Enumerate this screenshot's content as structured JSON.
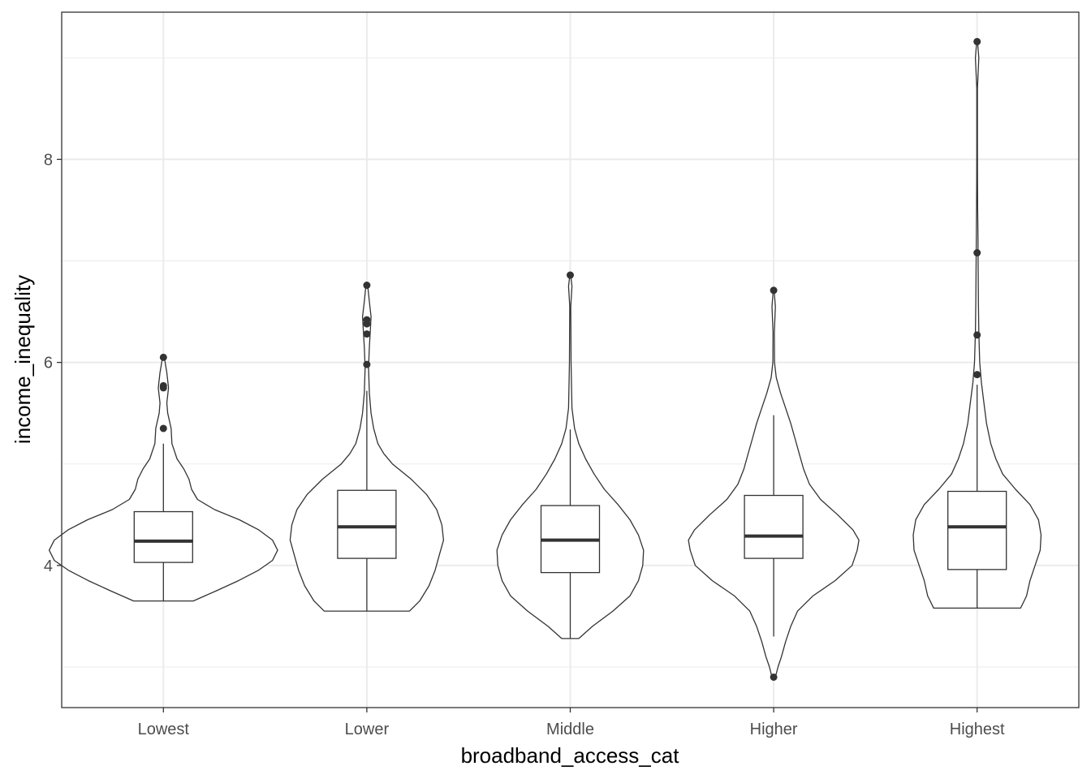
{
  "chart_data": {
    "type": "violin",
    "xlabel": "broadband_access_cat",
    "ylabel": "income_inequality",
    "categories": [
      "Lowest",
      "Lower",
      "Middle",
      "Higher",
      "Highest"
    ],
    "ylim": [
      2.6,
      9.45
    ],
    "yticks": [
      4,
      6,
      8
    ],
    "grid": true,
    "colors": {
      "line": "#333333",
      "grid": "#ebebeb",
      "panel_border": "#333333",
      "text": "#4d4d4d"
    },
    "series": [
      {
        "category": "Lowest",
        "box": {
          "lower_whisker": 3.65,
          "q1": 4.03,
          "median": 4.24,
          "q3": 4.53,
          "upper_whisker": 5.2
        },
        "outliers": [
          5.35,
          5.75,
          5.77,
          6.05
        ],
        "violin": [
          [
            3.65,
            0.35
          ],
          [
            3.75,
            0.62
          ],
          [
            3.85,
            0.88
          ],
          [
            3.95,
            1.11
          ],
          [
            4.05,
            1.28
          ],
          [
            4.15,
            1.34
          ],
          [
            4.25,
            1.28
          ],
          [
            4.35,
            1.12
          ],
          [
            4.45,
            0.89
          ],
          [
            4.55,
            0.6
          ],
          [
            4.65,
            0.4
          ],
          [
            4.75,
            0.33
          ],
          [
            4.85,
            0.3
          ],
          [
            4.95,
            0.24
          ],
          [
            5.05,
            0.16
          ],
          [
            5.2,
            0.1
          ],
          [
            5.35,
            0.09
          ],
          [
            5.5,
            0.05
          ],
          [
            5.6,
            0.04
          ],
          [
            5.75,
            0.06
          ],
          [
            5.9,
            0.04
          ],
          [
            6.05,
            0.01
          ]
        ]
      },
      {
        "category": "Lower",
        "box": {
          "lower_whisker": 3.55,
          "q1": 4.07,
          "median": 4.38,
          "q3": 4.74,
          "upper_whisker": 5.72
        },
        "outliers": [
          5.98,
          6.28,
          6.38,
          6.42,
          6.76
        ],
        "violin": [
          [
            3.55,
            0.5
          ],
          [
            3.65,
            0.62
          ],
          [
            3.8,
            0.73
          ],
          [
            3.95,
            0.8
          ],
          [
            4.1,
            0.85
          ],
          [
            4.25,
            0.9
          ],
          [
            4.4,
            0.88
          ],
          [
            4.55,
            0.82
          ],
          [
            4.7,
            0.7
          ],
          [
            4.85,
            0.52
          ],
          [
            5.0,
            0.3
          ],
          [
            5.1,
            0.2
          ],
          [
            5.2,
            0.13
          ],
          [
            5.35,
            0.08
          ],
          [
            5.5,
            0.05
          ],
          [
            5.7,
            0.03
          ],
          [
            5.95,
            0.02
          ],
          [
            6.15,
            0.03
          ],
          [
            6.3,
            0.04
          ],
          [
            6.45,
            0.05
          ],
          [
            6.6,
            0.03
          ],
          [
            6.76,
            0.01
          ]
        ]
      },
      {
        "category": "Middle",
        "box": {
          "lower_whisker": 3.28,
          "q1": 3.93,
          "median": 4.25,
          "q3": 4.59,
          "upper_whisker": 5.34
        },
        "outliers": [
          6.86
        ],
        "violin": [
          [
            3.28,
            0.1
          ],
          [
            3.4,
            0.26
          ],
          [
            3.55,
            0.5
          ],
          [
            3.7,
            0.7
          ],
          [
            3.85,
            0.8
          ],
          [
            4.0,
            0.85
          ],
          [
            4.15,
            0.86
          ],
          [
            4.3,
            0.8
          ],
          [
            4.45,
            0.7
          ],
          [
            4.6,
            0.56
          ],
          [
            4.75,
            0.4
          ],
          [
            4.9,
            0.28
          ],
          [
            5.05,
            0.18
          ],
          [
            5.2,
            0.1
          ],
          [
            5.35,
            0.05
          ],
          [
            5.55,
            0.02
          ],
          [
            5.75,
            0.015
          ],
          [
            6.0,
            0.01
          ],
          [
            6.3,
            0.008
          ],
          [
            6.55,
            0.006
          ],
          [
            6.75,
            0.02
          ],
          [
            6.86,
            0.005
          ]
        ]
      },
      {
        "category": "Higher",
        "box": {
          "lower_whisker": 3.3,
          "q1": 4.07,
          "median": 4.29,
          "q3": 4.69,
          "upper_whisker": 5.48
        },
        "outliers": [
          2.9,
          6.71
        ],
        "violin": [
          [
            2.9,
            0.02
          ],
          [
            3.0,
            0.05
          ],
          [
            3.1,
            0.09
          ],
          [
            3.25,
            0.14
          ],
          [
            3.4,
            0.2
          ],
          [
            3.55,
            0.28
          ],
          [
            3.7,
            0.46
          ],
          [
            3.85,
            0.72
          ],
          [
            4.0,
            0.92
          ],
          [
            4.15,
            0.98
          ],
          [
            4.25,
            1.0
          ],
          [
            4.35,
            0.93
          ],
          [
            4.5,
            0.75
          ],
          [
            4.65,
            0.55
          ],
          [
            4.8,
            0.42
          ],
          [
            4.95,
            0.35
          ],
          [
            5.1,
            0.3
          ],
          [
            5.25,
            0.25
          ],
          [
            5.4,
            0.2
          ],
          [
            5.55,
            0.14
          ],
          [
            5.7,
            0.08
          ],
          [
            5.85,
            0.03
          ],
          [
            6.0,
            0.01
          ],
          [
            6.3,
            0.008
          ],
          [
            6.55,
            0.02
          ],
          [
            6.71,
            0.005
          ]
        ]
      },
      {
        "category": "Highest",
        "box": {
          "lower_whisker": 3.58,
          "q1": 3.96,
          "median": 4.38,
          "q3": 4.73,
          "upper_whisker": 5.78
        },
        "outliers": [
          5.88,
          6.27,
          7.08,
          9.16
        ],
        "violin": [
          [
            3.58,
            0.51
          ],
          [
            3.7,
            0.58
          ],
          [
            3.85,
            0.62
          ],
          [
            4.0,
            0.68
          ],
          [
            4.15,
            0.74
          ],
          [
            4.3,
            0.75
          ],
          [
            4.45,
            0.72
          ],
          [
            4.6,
            0.62
          ],
          [
            4.75,
            0.45
          ],
          [
            4.9,
            0.3
          ],
          [
            5.05,
            0.22
          ],
          [
            5.2,
            0.16
          ],
          [
            5.4,
            0.11
          ],
          [
            5.6,
            0.08
          ],
          [
            5.8,
            0.05
          ],
          [
            6.0,
            0.03
          ],
          [
            6.3,
            0.02
          ],
          [
            6.6,
            0.015
          ],
          [
            6.9,
            0.012
          ],
          [
            7.2,
            0.01
          ],
          [
            7.5,
            0.007
          ],
          [
            7.8,
            0.005
          ],
          [
            8.1,
            0.004
          ],
          [
            8.4,
            0.004
          ],
          [
            8.7,
            0.004
          ],
          [
            9.0,
            0.02
          ],
          [
            9.16,
            0.005
          ]
        ]
      }
    ]
  }
}
